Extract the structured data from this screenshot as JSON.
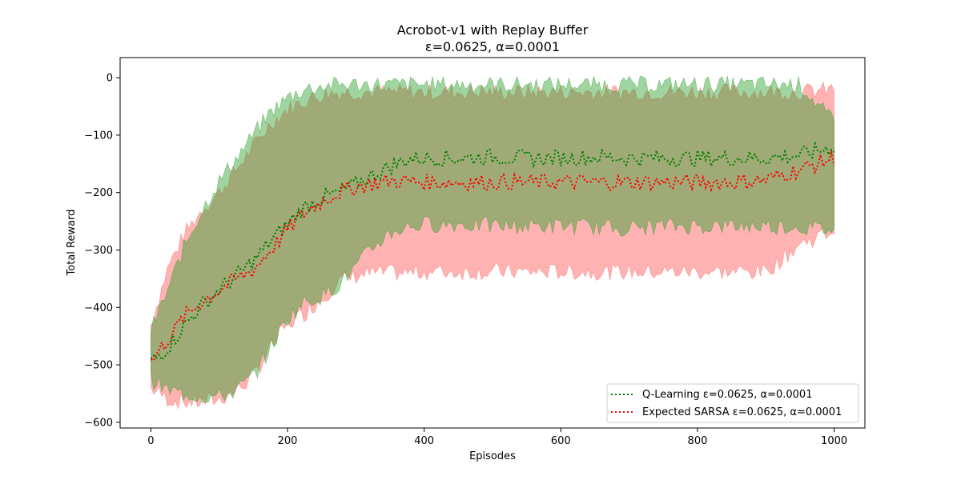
{
  "chart_data": {
    "type": "line",
    "title": "Acrobot-v1 with Replay Buffer",
    "subtitle": "ε=0.0625, α=0.0001",
    "xlabel": "Episodes",
    "ylabel": "Total Reward",
    "xlim": [
      -45,
      1045
    ],
    "ylim": [
      -610,
      35
    ],
    "x_ticks": [
      0,
      200,
      400,
      600,
      800,
      1000
    ],
    "y_ticks": [
      0,
      -100,
      -200,
      -300,
      -400,
      -500,
      -600
    ],
    "grid": false,
    "legend_position": "lower-right",
    "series": [
      {
        "name": "Q-Learning ε=0.0625, α=0.0001",
        "color": "#008000",
        "band_color": "#2ca02c",
        "x": [
          0,
          25,
          50,
          75,
          100,
          125,
          150,
          175,
          200,
          225,
          250,
          275,
          300,
          325,
          350,
          375,
          400,
          450,
          500,
          550,
          600,
          650,
          700,
          750,
          800,
          850,
          900,
          950,
          1000
        ],
        "mean": [
          -495,
          -470,
          -430,
          -395,
          -370,
          -345,
          -320,
          -285,
          -255,
          -225,
          -210,
          -200,
          -185,
          -170,
          -155,
          -142,
          -140,
          -140,
          -138,
          -140,
          -140,
          -138,
          -140,
          -140,
          -140,
          -140,
          -140,
          -135,
          -120
        ],
        "upper": [
          -440,
          -370,
          -290,
          -230,
          -180,
          -140,
          -100,
          -60,
          -35,
          -20,
          -15,
          -12,
          -12,
          -12,
          -12,
          -12,
          -12,
          -12,
          -12,
          -12,
          -12,
          -12,
          -12,
          -12,
          -12,
          -12,
          -12,
          -12,
          -80
        ],
        "lower": [
          -525,
          -545,
          -550,
          -555,
          -555,
          -545,
          -520,
          -470,
          -420,
          -390,
          -380,
          -360,
          -330,
          -295,
          -270,
          -260,
          -255,
          -255,
          -258,
          -258,
          -258,
          -260,
          -262,
          -258,
          -258,
          -258,
          -258,
          -260,
          -265
        ]
      },
      {
        "name": "Expected SARSA ε=0.0625, α=0.0001",
        "color": "#ff0000",
        "band_color": "#ff6666",
        "x": [
          0,
          25,
          50,
          75,
          100,
          125,
          150,
          175,
          200,
          225,
          250,
          275,
          300,
          325,
          350,
          375,
          400,
          450,
          500,
          550,
          600,
          650,
          700,
          750,
          800,
          850,
          900,
          950,
          1000
        ],
        "mean": [
          -495,
          -455,
          -415,
          -390,
          -370,
          -350,
          -335,
          -300,
          -265,
          -235,
          -215,
          -200,
          -190,
          -185,
          -180,
          -180,
          -182,
          -182,
          -182,
          -182,
          -182,
          -182,
          -182,
          -182,
          -182,
          -182,
          -178,
          -160,
          -140
        ],
        "upper": [
          -430,
          -330,
          -270,
          -230,
          -200,
          -160,
          -120,
          -80,
          -55,
          -40,
          -30,
          -25,
          -25,
          -25,
          -25,
          -25,
          -25,
          -25,
          -25,
          -25,
          -25,
          -25,
          -25,
          -25,
          -25,
          -25,
          -25,
          -25,
          -20
        ],
        "lower": [
          -540,
          -560,
          -565,
          -565,
          -560,
          -545,
          -520,
          -470,
          -430,
          -410,
          -385,
          -355,
          -345,
          -340,
          -340,
          -340,
          -338,
          -338,
          -338,
          -338,
          -338,
          -338,
          -338,
          -338,
          -338,
          -338,
          -338,
          -290,
          -265
        ]
      }
    ]
  }
}
